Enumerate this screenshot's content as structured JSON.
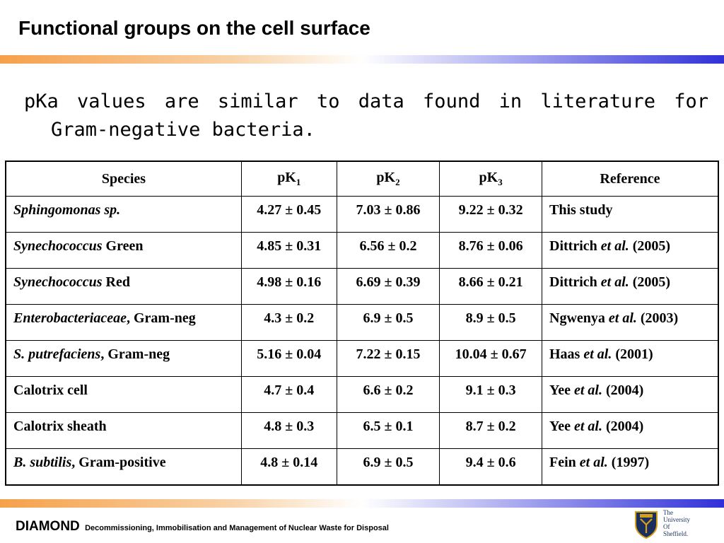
{
  "header": {
    "title": "Functional groups on the cell surface"
  },
  "intro_text": "pKa values are similar to data found in literature for Gram-negative bacteria.",
  "table": {
    "headers": {
      "species": "Species",
      "pk1_base": "pK",
      "pk1_sub": "1",
      "pk2_base": "pK",
      "pk2_sub": "2",
      "pk3_base": "pK",
      "pk3_sub": "3",
      "reference": "Reference"
    },
    "rows": [
      {
        "species_italic": "Sphingomonas sp.",
        "species_rest": "",
        "pk1": "4.27 ± 0.45",
        "pk2": "7.03 ± 0.86",
        "pk3": "9.22 ± 0.32",
        "ref_author": "This study",
        "ref_etal": "",
        "ref_year": ""
      },
      {
        "species_italic": "Synechococcus",
        "species_rest": " Green",
        "pk1": "4.85 ± 0.31",
        "pk2": "6.56 ± 0.2",
        "pk3": "8.76 ± 0.06",
        "ref_author": "Dittrich ",
        "ref_etal": "et al.",
        "ref_year": " (2005)"
      },
      {
        "species_italic": "Synechococcus",
        "species_rest": " Red",
        "pk1": "4.98 ± 0.16",
        "pk2": "6.69 ± 0.39",
        "pk3": "8.66 ± 0.21",
        "ref_author": "Dittrich ",
        "ref_etal": "et al.",
        "ref_year": " (2005)"
      },
      {
        "species_italic": "Enterobacteriaceae",
        "species_rest": ", Gram-neg",
        "pk1": "4.3 ± 0.2",
        "pk2": "6.9 ± 0.5",
        "pk3": "8.9 ± 0.5",
        "ref_author": "Ngwenya ",
        "ref_etal": "et al.",
        "ref_year": " (2003)"
      },
      {
        "species_italic": "S. putrefaciens",
        "species_rest": ", Gram-neg",
        "pk1": "5.16 ± 0.04",
        "pk2": "7.22 ± 0.15",
        "pk3": "10.04 ± 0.67",
        "ref_author": "Haas ",
        "ref_etal": "et al.",
        "ref_year": " (2001)"
      },
      {
        "species_italic": "",
        "species_rest": "Calotrix cell",
        "pk1": "4.7 ± 0.4",
        "pk2": "6.6 ± 0.2",
        "pk3": "9.1 ± 0.3",
        "ref_author": "Yee ",
        "ref_etal": "et al.",
        "ref_year": " (2004)"
      },
      {
        "species_italic": "",
        "species_rest": "Calotrix sheath",
        "pk1": "4.8 ± 0.3",
        "pk2": "6.5 ± 0.1",
        "pk3": "8.7 ± 0.2",
        "ref_author": "Yee ",
        "ref_etal": "et al.",
        "ref_year": " (2004)"
      },
      {
        "species_italic": "B. subtilis",
        "species_rest": ", Gram-positive",
        "pk1": "4.8 ± 0.14",
        "pk2": "6.9 ± 0.5",
        "pk3": "9.4 ± 0.6",
        "ref_author": "Fein ",
        "ref_etal": "et al.",
        "ref_year": " (1997)"
      }
    ]
  },
  "footer": {
    "brand": "DIAMOND",
    "description": "Decommissioning, Immobilisation and Management of Nuclear Waste for Disposal",
    "logo_line1": "The",
    "logo_line2": "University",
    "logo_line3": "Of",
    "logo_line4": "Sheffield."
  },
  "colors": {
    "band_orange": "#f6a04a",
    "band_blue": "#3030d8",
    "logo_navy": "#1b2f5e",
    "logo_gold": "#d4a017"
  }
}
